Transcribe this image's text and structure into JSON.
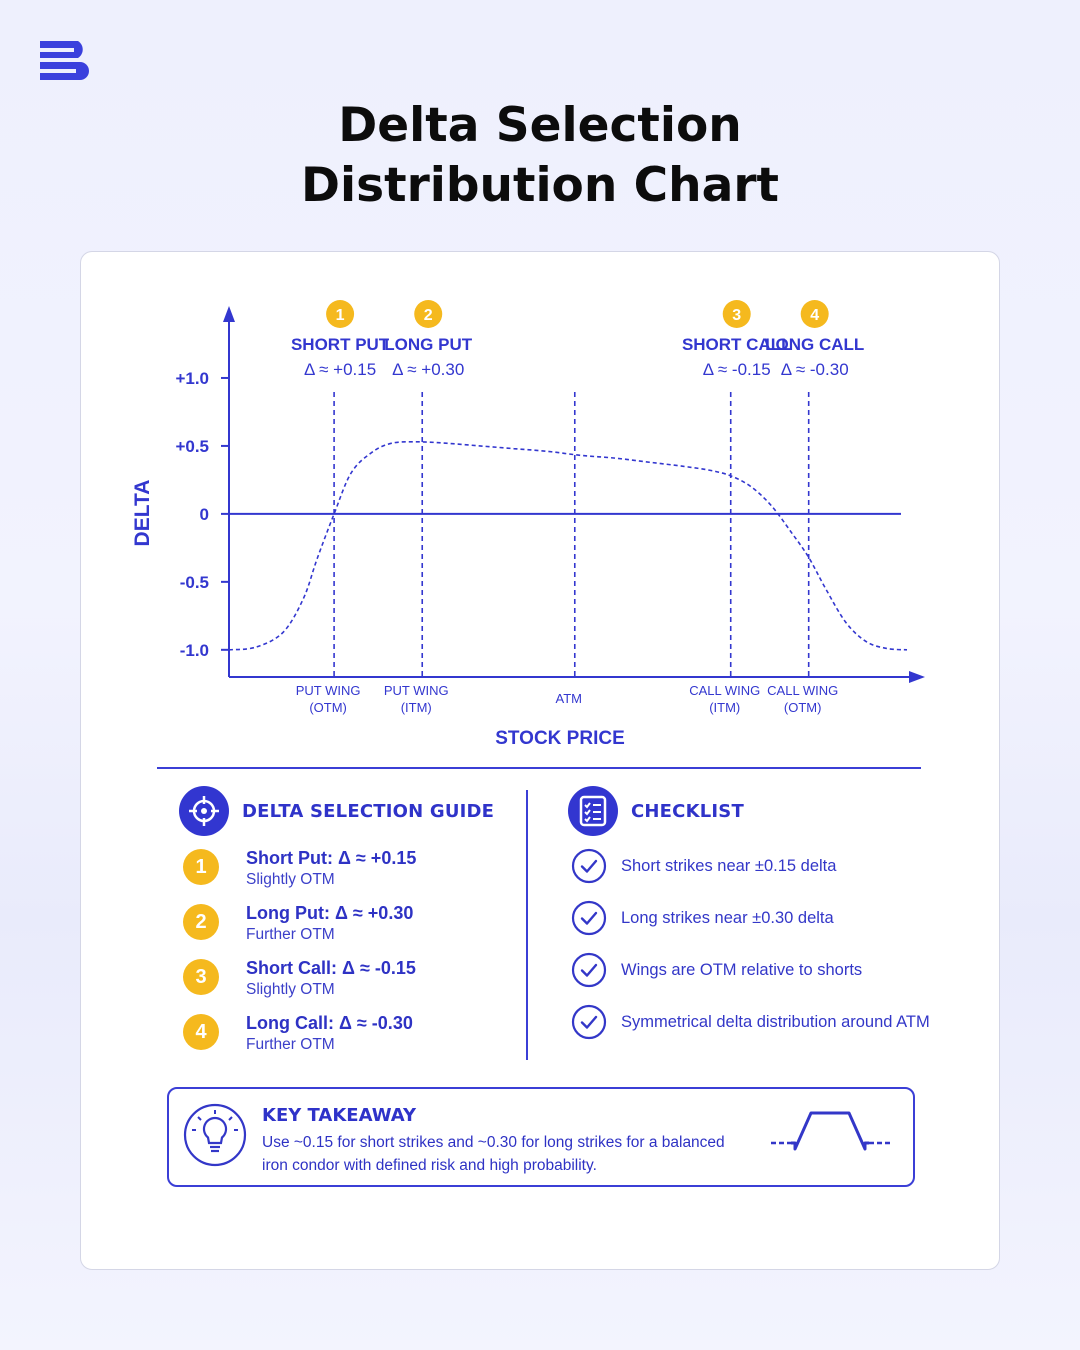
{
  "page_title_lines": [
    "Delta Selection",
    "Distribution Chart"
  ],
  "colors": {
    "accent": "#3236d0",
    "badge": "#f5b91e",
    "text_dark": "#0c0c0c",
    "background": "#eef0fd"
  },
  "chart_data": {
    "type": "line",
    "title": "",
    "xlabel": "STOCK PRICE",
    "ylabel": "DELTA",
    "yticks": [
      "+1.0",
      "+0.5",
      "0",
      "-0.5",
      "-1.0"
    ],
    "ytick_values": [
      1.0,
      0.5,
      0,
      -0.5,
      -1.0
    ],
    "ylim": [
      -1.2,
      1.5
    ],
    "xlim": [
      0,
      1
    ],
    "grid": false,
    "series": [
      {
        "style": "dashed",
        "x": [
          0.0,
          0.04,
          0.08,
          0.11,
          0.13,
          0.155,
          0.18,
          0.21,
          0.24,
          0.28,
          0.32,
          0.37,
          0.42,
          0.47,
          0.52,
          0.57,
          0.62,
          0.67,
          0.71,
          0.74,
          0.77,
          0.8,
          0.83,
          0.855,
          0.88,
          0.91,
          0.94,
          0.97,
          1.0
        ],
        "y": [
          -1.0,
          -0.98,
          -0.87,
          -0.62,
          -0.33,
          0.0,
          0.3,
          0.45,
          0.52,
          0.53,
          0.52,
          0.5,
          0.48,
          0.46,
          0.43,
          0.41,
          0.38,
          0.35,
          0.32,
          0.28,
          0.2,
          0.06,
          -0.14,
          -0.32,
          -0.55,
          -0.8,
          -0.94,
          -0.99,
          -1.0
        ]
      }
    ],
    "markers": [
      {
        "x": 0.155,
        "number": "1",
        "label": "SHORT PUT",
        "delta": "Δ ≈ +0.15",
        "x_label": [
          "PUT WING",
          "(OTM)"
        ]
      },
      {
        "x": 0.285,
        "number": "2",
        "label": "LONG PUT",
        "delta": "Δ ≈ +0.30",
        "x_label": [
          "PUT WING",
          "(ITM)"
        ]
      },
      {
        "x": 0.51,
        "number": "",
        "label": "",
        "delta": "",
        "x_label": [
          "ATM"
        ]
      },
      {
        "x": 0.74,
        "number": "3",
        "label": "SHORT CALL",
        "delta": "Δ ≈ -0.15",
        "x_label": [
          "CALL WING",
          "(ITM)"
        ]
      },
      {
        "x": 0.855,
        "number": "4",
        "label": "LONG CALL",
        "delta": "Δ ≈ -0.30",
        "x_label": [
          "CALL WING",
          "(OTM)"
        ]
      }
    ]
  },
  "guide": {
    "icon": "crosshair-icon",
    "title": "DELTA SELECTION GUIDE",
    "items": [
      {
        "number": "1",
        "label": "Short Put: Δ ≈ +0.15",
        "sub": "Slightly OTM"
      },
      {
        "number": "2",
        "label": "Long Put: Δ ≈ +0.30",
        "sub": "Further OTM"
      },
      {
        "number": "3",
        "label": "Short Call: Δ ≈ -0.15",
        "sub": "Slightly OTM"
      },
      {
        "number": "4",
        "label": "Long Call: Δ ≈ -0.30",
        "sub": "Further OTM"
      }
    ]
  },
  "checklist": {
    "icon": "checklist-icon",
    "title": "CHECKLIST",
    "items": [
      "Short strikes near ±0.15 delta",
      "Long strikes near ±0.30 delta",
      "Wings are OTM relative to shorts",
      "Symmetrical delta distribution around ATM"
    ]
  },
  "takeaway": {
    "icon": "lightbulb-icon",
    "title": "KEY TAKEAWAY",
    "text": "Use ~0.15 for short strikes and ~0.30 for long strikes for a balanced iron condor with defined risk and high probability."
  }
}
